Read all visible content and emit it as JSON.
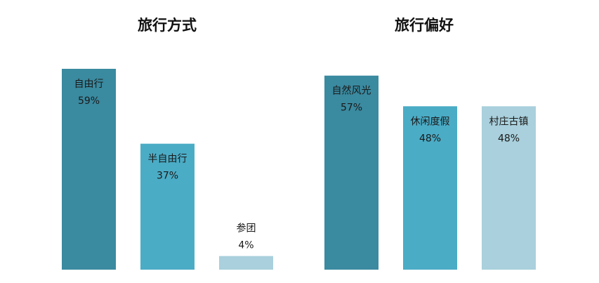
{
  "chart_data": [
    {
      "type": "bar",
      "title": "旅行方式",
      "categories": [
        "自由行",
        "半自由行",
        "参团"
      ],
      "values": [
        59,
        37,
        4
      ],
      "value_labels": [
        "59%",
        "37%",
        "4%"
      ],
      "colors": [
        "#3a8aa0",
        "#4bacc6",
        "#a9d0dc"
      ],
      "ylim": [
        0,
        59
      ],
      "grid": false,
      "legend": "none"
    },
    {
      "type": "bar",
      "title": "旅行偏好",
      "categories": [
        "自然风光",
        "休闲度假",
        "村庄古镇"
      ],
      "values": [
        57,
        48,
        48
      ],
      "value_labels": [
        "57%",
        "48%",
        "48%"
      ],
      "colors": [
        "#3a8aa0",
        "#4bacc6",
        "#a9d0dc"
      ],
      "ylim": [
        0,
        59
      ],
      "grid": false,
      "legend": "none"
    }
  ]
}
